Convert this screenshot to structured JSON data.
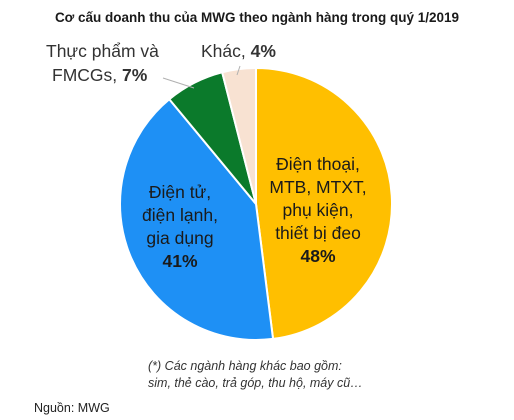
{
  "chart_data": {
    "type": "pie",
    "title": "Cơ cấu doanh thu của MWG theo ngành hàng trong quý 1/2019",
    "slices": [
      {
        "label_lines": [
          "Điện thoại,",
          "MTB, MTXT,",
          "phụ kiện,",
          "thiết bị đeo"
        ],
        "value": 48,
        "value_label": "48%",
        "color": "#FFBF00"
      },
      {
        "label_lines": [
          "Điện tử,",
          "điện lạnh,",
          "gia dụng"
        ],
        "value": 41,
        "value_label": "41%",
        "color": "#1E90F5"
      },
      {
        "label_lines": [
          "Thực phẩm và",
          "FMCGs,"
        ],
        "value": 7,
        "value_label": "7%",
        "color": "#0B7A2B"
      },
      {
        "label_lines": [
          "Khác,"
        ],
        "value": 4,
        "value_label": "4%",
        "color": "#F8E2D2"
      }
    ],
    "start_angle_deg": 0,
    "direction": "clockwise"
  },
  "footnote": {
    "line1": "(*) Các ngành hàng khác bao gồm:",
    "line2": "sim, thẻ cào, trả góp, thu hộ, máy cũ…"
  },
  "source": "Nguồn: MWG"
}
